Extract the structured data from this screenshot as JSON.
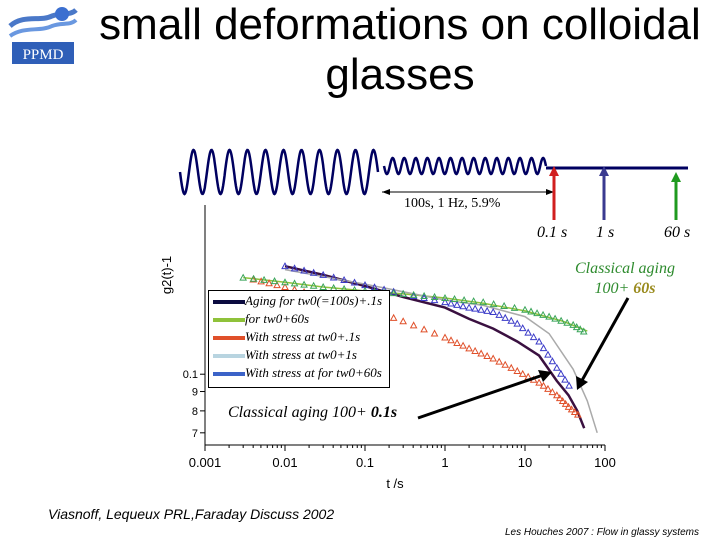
{
  "slide": {
    "title": "small deformations on colloidal glasses",
    "logo_text": "PPMD",
    "stimulus_params": "100s, 1 Hz, 5.9%",
    "stimulus_times": [
      "0.1 s",
      "1 s",
      "60 s"
    ],
    "stimulus_colors": [
      "#d11f1f",
      "#3a3a90",
      "#1f9a1f"
    ],
    "annotation_right_line1": "Classical aging",
    "annotation_right_line2": "100+",
    "annotation_right_bold": "60s",
    "annotation_left_prefix": "Classical aging 100+",
    "annotation_left_bold": "0.1s",
    "citation": "Viasnoff, Lequeux PRL,Faraday Discuss 2002",
    "footer": "Les Houches 2007 : Flow in glassy systems"
  },
  "legend": [
    {
      "label": "Aging for tw0(=100s)+.1s",
      "color": "#0b0b40"
    },
    {
      "label": "for tw0+60s",
      "color": "#8fc23a"
    },
    {
      "label": "With stress at tw0+.1s",
      "color": "#e0502a"
    },
    {
      "label": "With stress at tw0+1s",
      "color": "#b8d4e0"
    },
    {
      "label": "With stress at for tw0+60s",
      "color": "#3b63c8"
    }
  ],
  "chart_data": {
    "type": "line",
    "title": "",
    "xlabel": "t /s",
    "ylabel": "g2(t)-1",
    "xscale": "log",
    "yscale": "log",
    "xlim": [
      0.001,
      100
    ],
    "ylim": [
      0.065,
      0.28
    ],
    "x_ticks": [
      "0.001",
      "0.01",
      "0.1",
      "1",
      "10",
      "100"
    ],
    "y_ticks": [
      "0.1",
      "9",
      "8",
      "7"
    ],
    "series": [
      {
        "name": "Aging for tw0(=100s)+.1s",
        "color": "#3a1040",
        "marker": "line",
        "x": [
          0.01,
          0.03,
          0.1,
          0.3,
          1,
          2,
          4,
          8,
          15,
          25,
          35,
          45,
          55
        ],
        "y": [
          0.193,
          0.183,
          0.171,
          0.16,
          0.15,
          0.14,
          0.132,
          0.122,
          0.112,
          0.096,
          0.088,
          0.08,
          0.072
        ]
      },
      {
        "name": "for tw0+60s",
        "color": "#8fc23a",
        "marker": "line",
        "x": [
          0.003,
          0.01,
          0.03,
          0.1,
          0.3,
          1,
          3,
          10,
          30,
          60
        ],
        "y": [
          0.18,
          0.175,
          0.17,
          0.166,
          0.163,
          0.159,
          0.154,
          0.147,
          0.138,
          0.13
        ]
      },
      {
        "name": "With stress at tw0+.1s",
        "color": "#e0502a",
        "marker": "triangle",
        "x": [
          0.004,
          0.01,
          0.03,
          0.1,
          0.3,
          1,
          2,
          4,
          8,
          15,
          25,
          35,
          50
        ],
        "y": [
          0.178,
          0.17,
          0.16,
          0.15,
          0.138,
          0.125,
          0.117,
          0.11,
          0.102,
          0.095,
          0.088,
          0.082,
          0.077
        ]
      },
      {
        "name": "With stress at tw0+1s",
        "color": "#aaaaaa",
        "marker": "line",
        "x": [
          0.01,
          0.1,
          1,
          3,
          10,
          20,
          40,
          60,
          80
        ],
        "y": [
          0.189,
          0.173,
          0.157,
          0.152,
          0.142,
          0.128,
          0.103,
          0.085,
          0.07
        ]
      },
      {
        "name": "With stress at for tw0+60s",
        "color": "#3b3bc8",
        "marker": "triangle",
        "x": [
          0.01,
          0.03,
          0.1,
          0.3,
          1,
          2,
          4,
          8,
          15,
          25,
          40
        ],
        "y": [
          0.193,
          0.183,
          0.172,
          0.163,
          0.155,
          0.15,
          0.146,
          0.136,
          0.122,
          0.104,
          0.09
        ]
      },
      {
        "name": "green triangles",
        "color": "#3aa55a",
        "marker": "triangle",
        "x": [
          0.003,
          0.01,
          0.03,
          0.1,
          0.3,
          1,
          3,
          10,
          20,
          40,
          60
        ],
        "y": [
          0.18,
          0.175,
          0.17,
          0.166,
          0.163,
          0.159,
          0.155,
          0.148,
          0.142,
          0.135,
          0.128
        ]
      }
    ]
  }
}
